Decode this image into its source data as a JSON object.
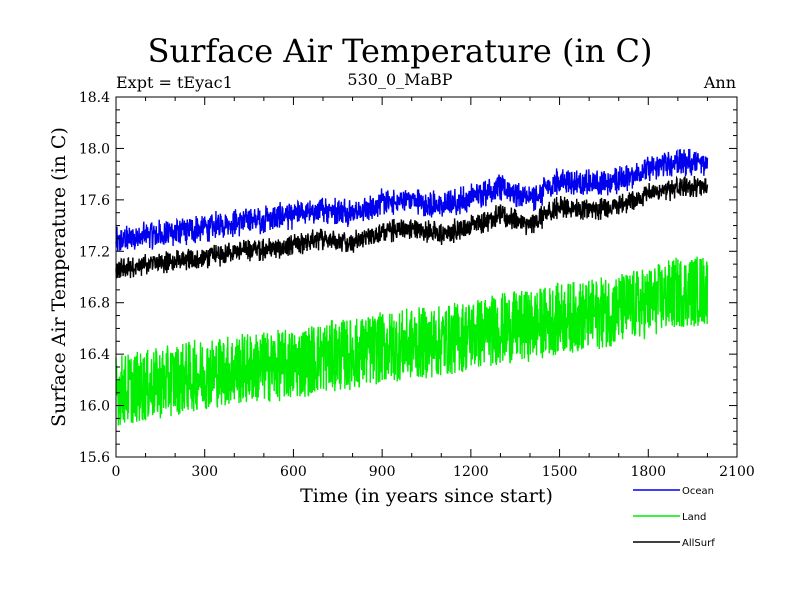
{
  "chart_data": {
    "type": "line",
    "title": "Surface Air Temperature (in C)",
    "subtitle_left": "Expt = tEyac1",
    "subtitle_center": "530_0_MaBP",
    "subtitle_right": "Ann",
    "xlabel": "Time (in years since start)",
    "ylabel": "Surface Air Temperature (in C)",
    "xlim": [
      0,
      2100
    ],
    "ylim": [
      15.6,
      18.4
    ],
    "xticks": [
      0,
      300,
      600,
      900,
      1200,
      1500,
      1800,
      2100
    ],
    "xtick_labels": [
      "0",
      "300",
      "600",
      "900",
      "1200",
      "1500",
      "1800",
      "2100"
    ],
    "yticks": [
      15.6,
      16.0,
      16.4,
      16.8,
      17.2,
      17.6,
      18.0,
      18.4
    ],
    "ytick_labels": [
      "15.6",
      "16.0",
      "16.4",
      "16.8",
      "17.2",
      "17.6",
      "18.0",
      "18.4"
    ],
    "legend_position": "bottom-right",
    "series": [
      {
        "name": "Ocean",
        "color": "#0000ee",
        "x": [
          0,
          100,
          200,
          300,
          400,
          500,
          600,
          700,
          800,
          900,
          1000,
          1100,
          1200,
          1300,
          1400,
          1500,
          1600,
          1700,
          1800,
          1900,
          2000
        ],
        "values": [
          17.28,
          17.32,
          17.35,
          17.38,
          17.42,
          17.45,
          17.48,
          17.52,
          17.5,
          17.58,
          17.6,
          17.55,
          17.62,
          17.7,
          17.6,
          17.75,
          17.72,
          17.75,
          17.85,
          17.9,
          17.88
        ],
        "noise_amplitude": 0.12
      },
      {
        "name": "Land",
        "color": "#00ee00",
        "x": [
          0,
          100,
          200,
          300,
          400,
          500,
          600,
          700,
          800,
          900,
          1000,
          1100,
          1200,
          1300,
          1400,
          1500,
          1600,
          1700,
          1800,
          1900,
          2000
        ],
        "values": [
          16.12,
          16.15,
          16.2,
          16.25,
          16.28,
          16.3,
          16.32,
          16.38,
          16.4,
          16.45,
          16.48,
          16.5,
          16.55,
          16.6,
          16.62,
          16.68,
          16.7,
          16.75,
          16.8,
          16.88,
          16.9
        ],
        "noise_amplitude": 0.28
      },
      {
        "name": "AllSurf",
        "color": "#000000",
        "x": [
          0,
          100,
          200,
          300,
          400,
          500,
          600,
          700,
          800,
          900,
          1000,
          1100,
          1200,
          1300,
          1400,
          1500,
          1600,
          1700,
          1800,
          1900,
          2000
        ],
        "values": [
          17.05,
          17.1,
          17.12,
          17.15,
          17.2,
          17.22,
          17.25,
          17.3,
          17.28,
          17.35,
          17.38,
          17.33,
          17.4,
          17.48,
          17.4,
          17.55,
          17.52,
          17.55,
          17.65,
          17.7,
          17.7
        ],
        "noise_amplitude": 0.1
      }
    ]
  }
}
